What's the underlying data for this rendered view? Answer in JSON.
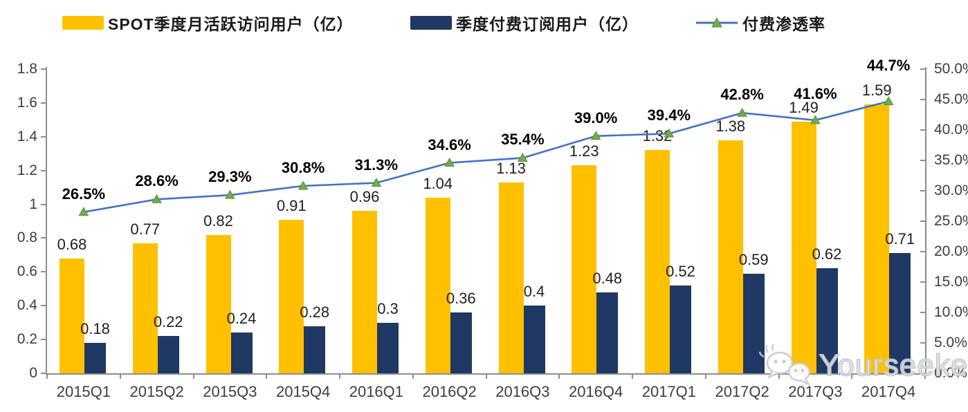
{
  "legend": {
    "items": [
      {
        "label": "SPOT季度月活跃访问用户（亿）",
        "color": "#FFC000"
      },
      {
        "label": "季度付费订阅用户（亿）",
        "color": "#1F3864"
      },
      {
        "label": "付费渗透率",
        "line_color": "#4472C4",
        "marker_color": "#70AD47"
      }
    ]
  },
  "chart_data": {
    "type": "combo-bar-line",
    "categories": [
      "2015Q1",
      "2015Q2",
      "2015Q3",
      "2015Q4",
      "2016Q1",
      "2016Q2",
      "2016Q3",
      "2016Q4",
      "2017Q1",
      "2017Q2",
      "2017Q3",
      "2017Q4"
    ],
    "series": [
      {
        "name": "SPOT季度月活跃访问用户（亿）",
        "type": "bar",
        "axis": "left",
        "color": "#FFC000",
        "values": [
          0.68,
          0.77,
          0.82,
          0.91,
          0.96,
          1.04,
          1.13,
          1.23,
          1.32,
          1.38,
          1.49,
          1.59
        ],
        "labels": [
          "0.68",
          "0.77",
          "0.82",
          "0.91",
          "0.96",
          "1.04",
          "1.13",
          "1.23",
          "1.32",
          "1.38",
          "1.49",
          "1.59"
        ]
      },
      {
        "name": "季度付费订阅用户（亿）",
        "type": "bar",
        "axis": "left",
        "color": "#1F3864",
        "values": [
          0.18,
          0.22,
          0.24,
          0.28,
          0.3,
          0.36,
          0.4,
          0.48,
          0.52,
          0.59,
          0.62,
          0.71
        ],
        "labels": [
          "0.18",
          "0.22",
          "0.24",
          "0.28",
          "0.3",
          "0.36",
          "0.4",
          "0.48",
          "0.52",
          "0.59",
          "0.62",
          "0.71"
        ]
      },
      {
        "name": "付费渗透率",
        "type": "line",
        "axis": "right",
        "color": "#4472C4",
        "marker": "triangle",
        "marker_color": "#70AD47",
        "values": [
          26.5,
          28.6,
          29.3,
          30.8,
          31.3,
          34.6,
          35.4,
          39.0,
          39.4,
          42.8,
          41.6,
          44.7
        ],
        "labels": [
          "26.5%",
          "28.6%",
          "29.3%",
          "30.8%",
          "31.3%",
          "34.6%",
          "35.4%",
          "39.0%",
          "39.4%",
          "42.8%",
          "41.6%",
          "44.7%"
        ]
      }
    ],
    "left_axis": {
      "min": 0,
      "max": 1.8,
      "tick_step": 0.2,
      "tick_labels": [
        "0",
        "0.2",
        "0.4",
        "0.6",
        "0.8",
        "1",
        "1.2",
        "1.4",
        "1.6",
        "1.8"
      ]
    },
    "right_axis": {
      "min": 0,
      "max": 50,
      "tick_step": 5,
      "tick_labels": [
        "0.0%",
        "5.0%",
        "10.0%",
        "15.0%",
        "20.0%",
        "25.0%",
        "30.0%",
        "35.0%",
        "40.0%",
        "45.0%",
        "50.0%"
      ]
    },
    "grid": false,
    "legend_position": "top"
  },
  "watermark": {
    "text": "Yourseeker",
    "icon": "wechat-logo-icon"
  }
}
